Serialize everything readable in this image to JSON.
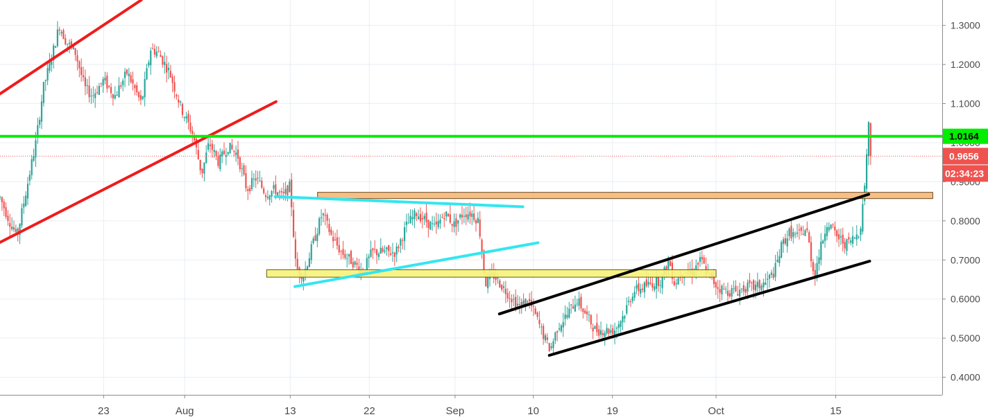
{
  "chart_data": {
    "type": "candlestick",
    "title": "",
    "xlabel": "",
    "ylabel": "",
    "ylim": [
      0.355,
      1.365
    ],
    "y_ticks": [
      "0.4000",
      "0.5000",
      "0.6000",
      "0.7000",
      "0.8000",
      "0.9000",
      "1.0000",
      "1.1000",
      "1.2000",
      "1.3000"
    ],
    "x_ticks": [
      {
        "label": "23",
        "pos": 0.11
      },
      {
        "label": "Aug",
        "pos": 0.196
      },
      {
        "label": "13",
        "pos": 0.308
      },
      {
        "label": "22",
        "pos": 0.392
      },
      {
        "label": "Sep",
        "pos": 0.483
      },
      {
        "label": "10",
        "pos": 0.566
      },
      {
        "label": "19",
        "pos": 0.65
      },
      {
        "label": "Oct",
        "pos": 0.76
      },
      {
        "label": "15",
        "pos": 0.887
      }
    ],
    "close_path": [
      [
        0.0,
        0.86
      ],
      [
        0.01,
        0.8
      ],
      [
        0.018,
        0.76
      ],
      [
        0.028,
        0.88
      ],
      [
        0.038,
        1.0
      ],
      [
        0.046,
        1.14
      ],
      [
        0.055,
        1.22
      ],
      [
        0.063,
        1.3
      ],
      [
        0.07,
        1.26
      ],
      [
        0.08,
        1.23
      ],
      [
        0.09,
        1.14
      ],
      [
        0.098,
        1.12
      ],
      [
        0.11,
        1.16
      ],
      [
        0.122,
        1.12
      ],
      [
        0.135,
        1.18
      ],
      [
        0.15,
        1.1
      ],
      [
        0.16,
        1.24
      ],
      [
        0.168,
        1.23
      ],
      [
        0.18,
        1.18
      ],
      [
        0.192,
        1.09
      ],
      [
        0.205,
        1.02
      ],
      [
        0.214,
        0.92
      ],
      [
        0.222,
        1.0
      ],
      [
        0.232,
        0.95
      ],
      [
        0.242,
        0.99
      ],
      [
        0.252,
        0.97
      ],
      [
        0.262,
        0.88
      ],
      [
        0.272,
        0.91
      ],
      [
        0.282,
        0.87
      ],
      [
        0.292,
        0.88
      ],
      [
        0.3,
        0.86
      ],
      [
        0.308,
        0.89
      ],
      [
        0.314,
        0.68
      ],
      [
        0.322,
        0.66
      ],
      [
        0.332,
        0.74
      ],
      [
        0.342,
        0.82
      ],
      [
        0.352,
        0.76
      ],
      [
        0.362,
        0.72
      ],
      [
        0.372,
        0.7
      ],
      [
        0.385,
        0.67
      ],
      [
        0.395,
        0.72
      ],
      [
        0.408,
        0.72
      ],
      [
        0.42,
        0.72
      ],
      [
        0.432,
        0.79
      ],
      [
        0.442,
        0.82
      ],
      [
        0.452,
        0.8
      ],
      [
        0.462,
        0.78
      ],
      [
        0.472,
        0.82
      ],
      [
        0.482,
        0.79
      ],
      [
        0.492,
        0.82
      ],
      [
        0.5,
        0.82
      ],
      [
        0.508,
        0.8
      ],
      [
        0.515,
        0.64
      ],
      [
        0.524,
        0.66
      ],
      [
        0.534,
        0.63
      ],
      [
        0.544,
        0.6
      ],
      [
        0.552,
        0.58
      ],
      [
        0.56,
        0.6
      ],
      [
        0.568,
        0.56
      ],
      [
        0.578,
        0.5
      ],
      [
        0.584,
        0.47
      ],
      [
        0.592,
        0.53
      ],
      [
        0.602,
        0.56
      ],
      [
        0.612,
        0.6
      ],
      [
        0.622,
        0.56
      ],
      [
        0.632,
        0.52
      ],
      [
        0.642,
        0.52
      ],
      [
        0.652,
        0.52
      ],
      [
        0.662,
        0.56
      ],
      [
        0.672,
        0.62
      ],
      [
        0.682,
        0.63
      ],
      [
        0.692,
        0.64
      ],
      [
        0.702,
        0.65
      ],
      [
        0.71,
        0.7
      ],
      [
        0.716,
        0.64
      ],
      [
        0.724,
        0.67
      ],
      [
        0.734,
        0.67
      ],
      [
        0.744,
        0.7
      ],
      [
        0.752,
        0.66
      ],
      [
        0.762,
        0.63
      ],
      [
        0.772,
        0.62
      ],
      [
        0.782,
        0.62
      ],
      [
        0.792,
        0.63
      ],
      [
        0.802,
        0.63
      ],
      [
        0.812,
        0.64
      ],
      [
        0.822,
        0.67
      ],
      [
        0.83,
        0.74
      ],
      [
        0.838,
        0.77
      ],
      [
        0.846,
        0.76
      ],
      [
        0.856,
        0.78
      ],
      [
        0.864,
        0.66
      ],
      [
        0.87,
        0.72
      ],
      [
        0.878,
        0.8
      ],
      [
        0.888,
        0.76
      ],
      [
        0.898,
        0.74
      ],
      [
        0.908,
        0.76
      ],
      [
        0.913,
        0.78
      ],
      [
        0.917,
        0.87
      ],
      [
        0.92,
        0.98
      ],
      [
        0.922,
        1.05
      ],
      [
        0.924,
        0.9656
      ]
    ],
    "annotations": {
      "red_channel": [
        {
          "x1": 0.0,
          "y1": 1.125,
          "x2": 0.15,
          "y2": 1.365
        },
        {
          "x1": 0.0,
          "y1": 0.745,
          "x2": 0.293,
          "y2": 1.105
        }
      ],
      "green_level": 1.0164,
      "cyan_triangle": [
        {
          "x1": 0.292,
          "y1": 0.862,
          "x2": 0.555,
          "y2": 0.836
        },
        {
          "x1": 0.313,
          "y1": 0.632,
          "x2": 0.571,
          "y2": 0.744
        }
      ],
      "black_channel": [
        {
          "x1": 0.53,
          "y1": 0.562,
          "x2": 0.922,
          "y2": 0.868
        },
        {
          "x1": 0.583,
          "y1": 0.456,
          "x2": 0.923,
          "y2": 0.697
        }
      ],
      "orange_zone": {
        "x1": 0.337,
        "x2": 0.99,
        "y_low": 0.857,
        "y_high": 0.873
      },
      "yellow_zone": {
        "x1": 0.283,
        "x2": 0.76,
        "y_low": 0.656,
        "y_high": 0.675
      },
      "last_price_line": 0.9656
    },
    "grid": true,
    "up_color": "#26a69a",
    "down_color": "#ef5350"
  },
  "price_labels": {
    "level": "1.0164",
    "last": "0.9656",
    "countdown": "02:34:23"
  },
  "colors": {
    "red_line": "#ee1c1c",
    "green_line": "#00ee00",
    "cyan_line": "#33e6f0",
    "black_line": "#000000",
    "orange_zone": "#f5b878",
    "yellow_zone": "#f7f27a",
    "grid": "#e9eef3",
    "axis_text": "#4a4a4a",
    "last_badge": "#ef5350",
    "level_badge": "#00ee00"
  }
}
